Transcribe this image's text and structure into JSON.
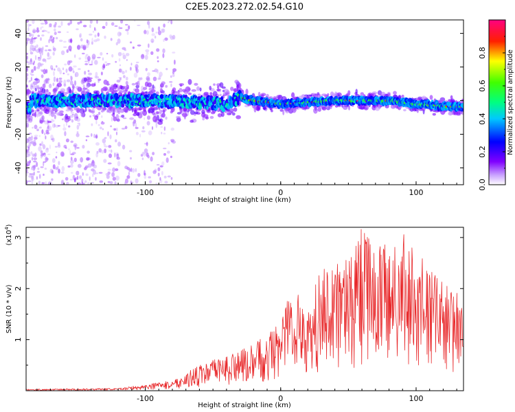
{
  "title": "C2E5.2023.272.02.54.G10",
  "chart_data": [
    {
      "type": "heatmap",
      "xlabel": "Height of straight line (km)",
      "ylabel": "Frequency (Hz)",
      "xlim": [
        -188,
        135
      ],
      "ylim": [
        -50,
        48
      ],
      "x_ticks": [
        "-100",
        "0",
        "100"
      ],
      "y_ticks": [
        "-40",
        "-20",
        "0",
        "20",
        "40"
      ],
      "colorbar": {
        "label": "Normalized spectral amplitude",
        "range": [
          0.0,
          1.0
        ],
        "ticks": [
          "0.0",
          "0.2",
          "0.4",
          "0.6",
          "0.8"
        ],
        "colors": [
          "#ffffff",
          "#8000ff",
          "#0000ff",
          "#00ffff",
          "#00ff00",
          "#ffff00",
          "#ff0000",
          "#ff0080"
        ]
      },
      "ridge": {
        "description_points": [
          {
            "x": -185,
            "y": 0
          },
          {
            "x": -100,
            "y": 0
          },
          {
            "x": -60,
            "y": -1
          },
          {
            "x": -40,
            "y": -2
          },
          {
            "x": -30,
            "y": 2
          },
          {
            "x": -20,
            "y": 0
          },
          {
            "x": 0,
            "y": -2
          },
          {
            "x": 40,
            "y": 0
          },
          {
            "x": 80,
            "y": 0
          },
          {
            "x": 100,
            "y": -2
          },
          {
            "x": 135,
            "y": -4
          }
        ]
      }
    },
    {
      "type": "line",
      "xlabel": "Height of straight line (km)",
      "ylabel": "SNR (10 * v/v)",
      "yscale_label": "(x10",
      "yscale_exp": "4",
      "yscale_close": ")",
      "xlim": [
        -188,
        135
      ],
      "ylim": [
        0,
        3.2
      ],
      "x_ticks": [
        "-100",
        "0",
        "100"
      ],
      "y_ticks": [
        "1",
        "2",
        "3"
      ],
      "color": "#e8282a",
      "envelope": [
        {
          "x": -188,
          "y": 0.03
        },
        {
          "x": -120,
          "y": 0.05
        },
        {
          "x": -80,
          "y": 0.2
        },
        {
          "x": -60,
          "y": 0.5
        },
        {
          "x": -40,
          "y": 0.7
        },
        {
          "x": -20,
          "y": 0.9
        },
        {
          "x": 0,
          "y": 1.4
        },
        {
          "x": 10,
          "y": 2.3
        },
        {
          "x": 20,
          "y": 1.5
        },
        {
          "x": 30,
          "y": 2.5
        },
        {
          "x": 50,
          "y": 2.6
        },
        {
          "x": 60,
          "y": 3.2
        },
        {
          "x": 80,
          "y": 2.8
        },
        {
          "x": 90,
          "y": 3.1
        },
        {
          "x": 110,
          "y": 2.4
        },
        {
          "x": 135,
          "y": 1.8
        }
      ]
    }
  ]
}
